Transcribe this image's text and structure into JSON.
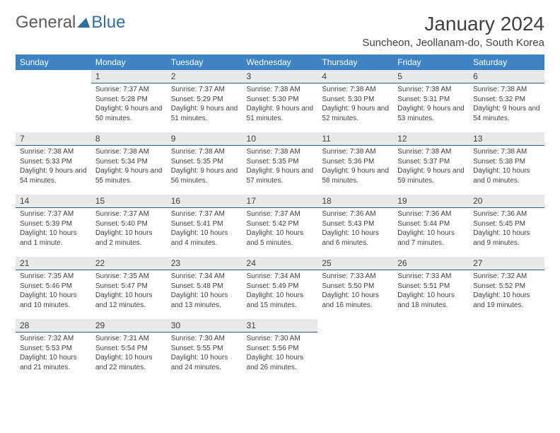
{
  "logo": {
    "part1": "General",
    "part2": "Blue"
  },
  "title": "January 2024",
  "location": "Suncheon, Jeollanam-do, South Korea",
  "colors": {
    "header_bg": "#3e84c5",
    "daybar_bg": "#e8e8e8",
    "daybar_border": "#2f5a8a",
    "text": "#404040",
    "logo_gray": "#5a5a5a",
    "logo_blue": "#2f6fa8"
  },
  "weekdays": [
    "Sunday",
    "Monday",
    "Tuesday",
    "Wednesday",
    "Thursday",
    "Friday",
    "Saturday"
  ],
  "weeks": [
    [
      null,
      {
        "n": "1",
        "sr": "7:37 AM",
        "ss": "5:28 PM",
        "dl": "9 hours and 50 minutes."
      },
      {
        "n": "2",
        "sr": "7:37 AM",
        "ss": "5:29 PM",
        "dl": "9 hours and 51 minutes."
      },
      {
        "n": "3",
        "sr": "7:38 AM",
        "ss": "5:30 PM",
        "dl": "9 hours and 51 minutes."
      },
      {
        "n": "4",
        "sr": "7:38 AM",
        "ss": "5:30 PM",
        "dl": "9 hours and 52 minutes."
      },
      {
        "n": "5",
        "sr": "7:38 AM",
        "ss": "5:31 PM",
        "dl": "9 hours and 53 minutes."
      },
      {
        "n": "6",
        "sr": "7:38 AM",
        "ss": "5:32 PM",
        "dl": "9 hours and 54 minutes."
      }
    ],
    [
      {
        "n": "7",
        "sr": "7:38 AM",
        "ss": "5:33 PM",
        "dl": "9 hours and 54 minutes."
      },
      {
        "n": "8",
        "sr": "7:38 AM",
        "ss": "5:34 PM",
        "dl": "9 hours and 55 minutes."
      },
      {
        "n": "9",
        "sr": "7:38 AM",
        "ss": "5:35 PM",
        "dl": "9 hours and 56 minutes."
      },
      {
        "n": "10",
        "sr": "7:38 AM",
        "ss": "5:35 PM",
        "dl": "9 hours and 57 minutes."
      },
      {
        "n": "11",
        "sr": "7:38 AM",
        "ss": "5:36 PM",
        "dl": "9 hours and 58 minutes."
      },
      {
        "n": "12",
        "sr": "7:38 AM",
        "ss": "5:37 PM",
        "dl": "9 hours and 59 minutes."
      },
      {
        "n": "13",
        "sr": "7:38 AM",
        "ss": "5:38 PM",
        "dl": "10 hours and 0 minutes."
      }
    ],
    [
      {
        "n": "14",
        "sr": "7:37 AM",
        "ss": "5:39 PM",
        "dl": "10 hours and 1 minute."
      },
      {
        "n": "15",
        "sr": "7:37 AM",
        "ss": "5:40 PM",
        "dl": "10 hours and 2 minutes."
      },
      {
        "n": "16",
        "sr": "7:37 AM",
        "ss": "5:41 PM",
        "dl": "10 hours and 4 minutes."
      },
      {
        "n": "17",
        "sr": "7:37 AM",
        "ss": "5:42 PM",
        "dl": "10 hours and 5 minutes."
      },
      {
        "n": "18",
        "sr": "7:36 AM",
        "ss": "5:43 PM",
        "dl": "10 hours and 6 minutes."
      },
      {
        "n": "19",
        "sr": "7:36 AM",
        "ss": "5:44 PM",
        "dl": "10 hours and 7 minutes."
      },
      {
        "n": "20",
        "sr": "7:36 AM",
        "ss": "5:45 PM",
        "dl": "10 hours and 9 minutes."
      }
    ],
    [
      {
        "n": "21",
        "sr": "7:35 AM",
        "ss": "5:46 PM",
        "dl": "10 hours and 10 minutes."
      },
      {
        "n": "22",
        "sr": "7:35 AM",
        "ss": "5:47 PM",
        "dl": "10 hours and 12 minutes."
      },
      {
        "n": "23",
        "sr": "7:34 AM",
        "ss": "5:48 PM",
        "dl": "10 hours and 13 minutes."
      },
      {
        "n": "24",
        "sr": "7:34 AM",
        "ss": "5:49 PM",
        "dl": "10 hours and 15 minutes."
      },
      {
        "n": "25",
        "sr": "7:33 AM",
        "ss": "5:50 PM",
        "dl": "10 hours and 16 minutes."
      },
      {
        "n": "26",
        "sr": "7:33 AM",
        "ss": "5:51 PM",
        "dl": "10 hours and 18 minutes."
      },
      {
        "n": "27",
        "sr": "7:32 AM",
        "ss": "5:52 PM",
        "dl": "10 hours and 19 minutes."
      }
    ],
    [
      {
        "n": "28",
        "sr": "7:32 AM",
        "ss": "5:53 PM",
        "dl": "10 hours and 21 minutes."
      },
      {
        "n": "29",
        "sr": "7:31 AM",
        "ss": "5:54 PM",
        "dl": "10 hours and 22 minutes."
      },
      {
        "n": "30",
        "sr": "7:30 AM",
        "ss": "5:55 PM",
        "dl": "10 hours and 24 minutes."
      },
      {
        "n": "31",
        "sr": "7:30 AM",
        "ss": "5:56 PM",
        "dl": "10 hours and 26 minutes."
      },
      null,
      null,
      null
    ]
  ],
  "labels": {
    "sunrise": "Sunrise:",
    "sunset": "Sunset:",
    "daylight": "Daylight:"
  }
}
